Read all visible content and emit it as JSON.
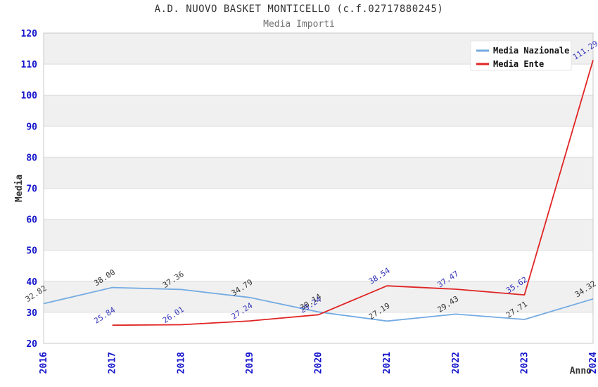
{
  "header": {
    "title": "A.D. NUOVO BASKET MONTICELLO (c.f.02717880245)",
    "subtitle": "Media Importi"
  },
  "legend": {
    "position": "top-right",
    "items": [
      {
        "label": "Media Nazionale",
        "color": "#74abe2"
      },
      {
        "label": "Media Ente",
        "color": "#e02424"
      }
    ]
  },
  "chart_data": {
    "type": "line",
    "title": "A.D. NUOVO BASKET MONTICELLO (c.f.02717880245)",
    "subtitle": "Media Importi",
    "xlabel": "Anno",
    "ylabel": "Media",
    "categories": [
      "2016",
      "2017",
      "2018",
      "2019",
      "2020",
      "2021",
      "2022",
      "2023",
      "2024"
    ],
    "series": [
      {
        "name": "Media Nazionale",
        "color": "#74abe2",
        "label_color": "#333333",
        "values": [
          32.82,
          38.0,
          37.36,
          34.79,
          30.14,
          27.19,
          29.43,
          27.71,
          34.32
        ]
      },
      {
        "name": "Media Ente",
        "color": "#e02424",
        "label_color": "#3333bb",
        "values": [
          null,
          25.84,
          26.01,
          27.24,
          29.24,
          38.54,
          37.47,
          35.62,
          111.29
        ]
      }
    ],
    "ylim": [
      20,
      120
    ],
    "y_step": 10,
    "grid": "horizontal-bands",
    "legend_position": "top-right",
    "band_colors": [
      "#ffffff",
      "#f0f0f0"
    ],
    "band_line_color": "#dcdcdc",
    "plot_border_color": "#c9c9c9",
    "tick_color": "#1414cc",
    "axis_text_color": "#333333"
  }
}
